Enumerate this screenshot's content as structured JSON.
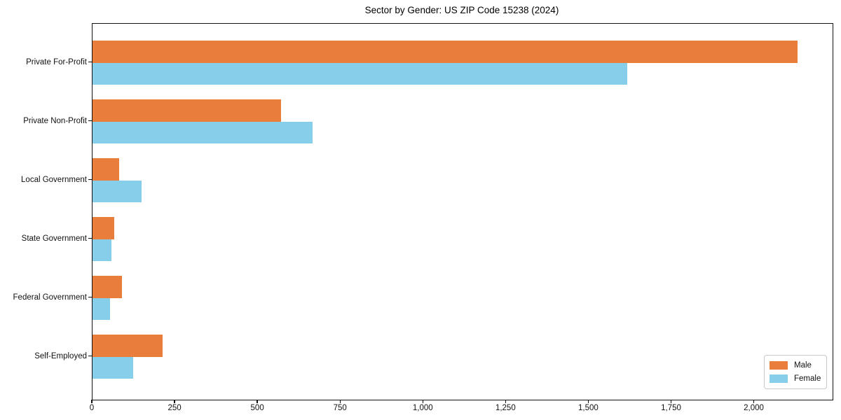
{
  "title": "Sector by Gender: US ZIP Code 15238 (2024)",
  "chart_data": {
    "type": "bar",
    "orientation": "horizontal",
    "title": "Sector by Gender: US ZIP Code 15238 (2024)",
    "categories": [
      "Private For-Profit",
      "Private Non-Profit",
      "Local Government",
      "State Government",
      "Federal Government",
      "Self-Employed"
    ],
    "series": [
      {
        "name": "Male",
        "color": "#e87d3c",
        "values": [
          2130,
          570,
          80,
          66,
          89,
          212
        ]
      },
      {
        "name": "Female",
        "color": "#87ceeb",
        "values": [
          1615,
          665,
          148,
          57,
          52,
          123
        ]
      }
    ],
    "xlabel": "",
    "ylabel": "",
    "xlim": [
      0,
      2236
    ],
    "xticks": [
      0,
      250,
      500,
      750,
      1000,
      1250,
      1500,
      1750,
      2000
    ],
    "xtick_labels": [
      "0",
      "250",
      "500",
      "750",
      "1,000",
      "1,250",
      "1,500",
      "1,750",
      "2,000"
    ],
    "grid": false,
    "legend": {
      "entries": [
        "Male",
        "Female"
      ],
      "position": "lower-right"
    }
  }
}
